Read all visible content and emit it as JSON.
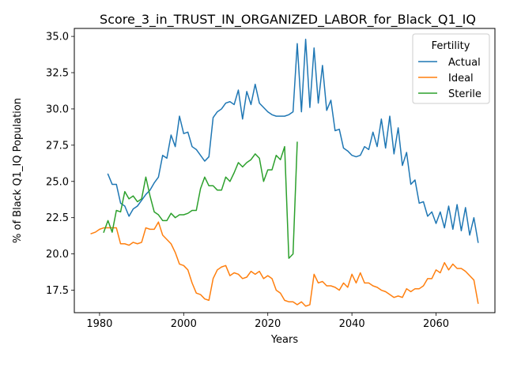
{
  "chart_data": {
    "type": "line",
    "title": "Score_3_in_TRUST_IN_ORGANIZED_LABOR_for_Black_Q1_IQ",
    "xlabel": "Years",
    "ylabel": "% of Black Q1_IQ Population",
    "xlim": [
      1974,
      2074
    ],
    "ylim": [
      15.95,
      35.55
    ],
    "xticks": [
      1980,
      2000,
      2020,
      2040,
      2060
    ],
    "yticks": [
      17.5,
      20.0,
      22.5,
      25.0,
      27.5,
      30.0,
      32.5,
      35.0
    ],
    "xtick_labels": [
      "1980",
      "2000",
      "2020",
      "2040",
      "2060"
    ],
    "ytick_labels": [
      "17.5",
      "20.0",
      "22.5",
      "25.0",
      "27.5",
      "30.0",
      "32.5",
      "35.0"
    ],
    "grid": false,
    "legend": {
      "title": "Fertility",
      "placement": "top-right"
    },
    "series": [
      {
        "name": "Actual",
        "color": "#1f77b4",
        "x": [
          1982,
          1983,
          1984,
          1985,
          1986,
          1987,
          1988,
          1989,
          1990,
          1991,
          1992,
          1993,
          1994,
          1995,
          1996,
          1997,
          1998,
          1999,
          2000,
          2001,
          2002,
          2003,
          2004,
          2005,
          2006,
          2007,
          2008,
          2009,
          2010,
          2011,
          2012,
          2013,
          2014,
          2015,
          2016,
          2017,
          2018,
          2019,
          2020,
          2021,
          2022,
          2023,
          2024,
          2025,
          2026,
          2027,
          2028,
          2029,
          2030,
          2031,
          2032,
          2033,
          2034,
          2035,
          2036,
          2037,
          2038,
          2039,
          2040,
          2041,
          2042,
          2043,
          2044,
          2045,
          2046,
          2047,
          2048,
          2049,
          2050,
          2051,
          2052,
          2053,
          2054,
          2055,
          2056,
          2057,
          2058,
          2059,
          2060,
          2061,
          2062,
          2063,
          2064,
          2065,
          2066,
          2067,
          2068,
          2069,
          2070
        ],
        "y": [
          25.5,
          24.8,
          24.8,
          23.5,
          23.3,
          22.6,
          23.1,
          23.3,
          23.7,
          24.1,
          24.4,
          24.9,
          25.3,
          26.8,
          26.6,
          28.2,
          27.4,
          29.5,
          28.3,
          28.4,
          27.4,
          27.2,
          26.8,
          26.4,
          26.7,
          29.4,
          29.8,
          30.0,
          30.4,
          30.5,
          30.3,
          31.3,
          29.3,
          31.2,
          30.3,
          31.7,
          30.4,
          30.1,
          29.8,
          29.6,
          29.5,
          29.5,
          29.5,
          29.6,
          29.8,
          34.5,
          29.8,
          34.8,
          30.1,
          34.2,
          30.4,
          33.0,
          29.9,
          30.6,
          28.5,
          28.6,
          27.3,
          27.1,
          26.8,
          26.7,
          26.8,
          27.4,
          27.2,
          28.4,
          27.4,
          29.3,
          27.3,
          29.5,
          26.9,
          28.7,
          26.1,
          27.0,
          24.8,
          25.1,
          23.5,
          23.6,
          22.6,
          22.9,
          22.1,
          22.9,
          21.8,
          23.3,
          21.7,
          23.4,
          21.6,
          23.2,
          21.3,
          22.5,
          20.8
        ]
      },
      {
        "name": "Ideal",
        "color": "#ff7f0e",
        "x": [
          1978,
          1979,
          1980,
          1981,
          1982,
          1983,
          1984,
          1985,
          1986,
          1987,
          1988,
          1989,
          1990,
          1991,
          1992,
          1993,
          1994,
          1995,
          1996,
          1997,
          1998,
          1999,
          2000,
          2001,
          2002,
          2003,
          2004,
          2005,
          2006,
          2007,
          2008,
          2009,
          2010,
          2011,
          2012,
          2013,
          2014,
          2015,
          2016,
          2017,
          2018,
          2019,
          2020,
          2021,
          2022,
          2023,
          2024,
          2025,
          2026,
          2027,
          2028,
          2029,
          2030,
          2031,
          2032,
          2033,
          2034,
          2035,
          2036,
          2037,
          2038,
          2039,
          2040,
          2041,
          2042,
          2043,
          2044,
          2045,
          2046,
          2047,
          2048,
          2049,
          2050,
          2051,
          2052,
          2053,
          2054,
          2055,
          2056,
          2057,
          2058,
          2059,
          2060,
          2061,
          2062,
          2063,
          2064,
          2065,
          2066,
          2067,
          2068,
          2069,
          2070
        ],
        "y": [
          21.4,
          21.5,
          21.7,
          21.8,
          21.8,
          21.8,
          21.8,
          20.7,
          20.7,
          20.6,
          20.8,
          20.7,
          20.8,
          21.8,
          21.7,
          21.7,
          22.2,
          21.3,
          21.0,
          20.7,
          20.1,
          19.3,
          19.2,
          18.9,
          18.0,
          17.3,
          17.2,
          16.9,
          16.8,
          18.3,
          18.9,
          19.1,
          19.2,
          18.5,
          18.7,
          18.6,
          18.3,
          18.4,
          18.8,
          18.6,
          18.8,
          18.3,
          18.5,
          18.3,
          17.5,
          17.3,
          16.8,
          16.7,
          16.7,
          16.5,
          16.7,
          16.4,
          16.5,
          18.6,
          18.0,
          18.1,
          17.8,
          17.8,
          17.7,
          17.5,
          18.0,
          17.7,
          18.6,
          18.0,
          18.7,
          18.0,
          18.0,
          17.8,
          17.7,
          17.5,
          17.4,
          17.2,
          17.0,
          17.1,
          17.0,
          17.6,
          17.4,
          17.6,
          17.6,
          17.8,
          18.3,
          18.3,
          18.9,
          18.7,
          19.4,
          18.9,
          19.3,
          19.0,
          19.0,
          18.8,
          18.5,
          18.2,
          16.6
        ]
      },
      {
        "name": "Sterile",
        "color": "#2ca02c",
        "x": [
          1981,
          1982,
          1983,
          1984,
          1985,
          1986,
          1987,
          1988,
          1989,
          1990,
          1991,
          1992,
          1993,
          1994,
          1995,
          1996,
          1997,
          1998,
          1999,
          2000,
          2001,
          2002,
          2003,
          2004,
          2005,
          2006,
          2007,
          2008,
          2009,
          2010,
          2011,
          2012,
          2013,
          2014,
          2015,
          2016,
          2017,
          2018,
          2019,
          2020,
          2021,
          2022,
          2023,
          2024,
          2025,
          2026,
          2027
        ],
        "y": [
          21.5,
          22.3,
          21.5,
          23.0,
          22.9,
          24.3,
          23.8,
          24.0,
          23.6,
          23.8,
          25.3,
          24.0,
          22.9,
          22.7,
          22.3,
          22.3,
          22.8,
          22.5,
          22.7,
          22.7,
          22.8,
          23.0,
          23.0,
          24.5,
          25.3,
          24.7,
          24.7,
          24.4,
          24.4,
          25.3,
          25.0,
          25.6,
          26.3,
          26.0,
          26.3,
          26.5,
          26.9,
          26.6,
          25.0,
          25.8,
          25.8,
          26.8,
          26.5,
          27.4,
          19.7,
          20.0,
          27.7
        ]
      }
    ]
  }
}
